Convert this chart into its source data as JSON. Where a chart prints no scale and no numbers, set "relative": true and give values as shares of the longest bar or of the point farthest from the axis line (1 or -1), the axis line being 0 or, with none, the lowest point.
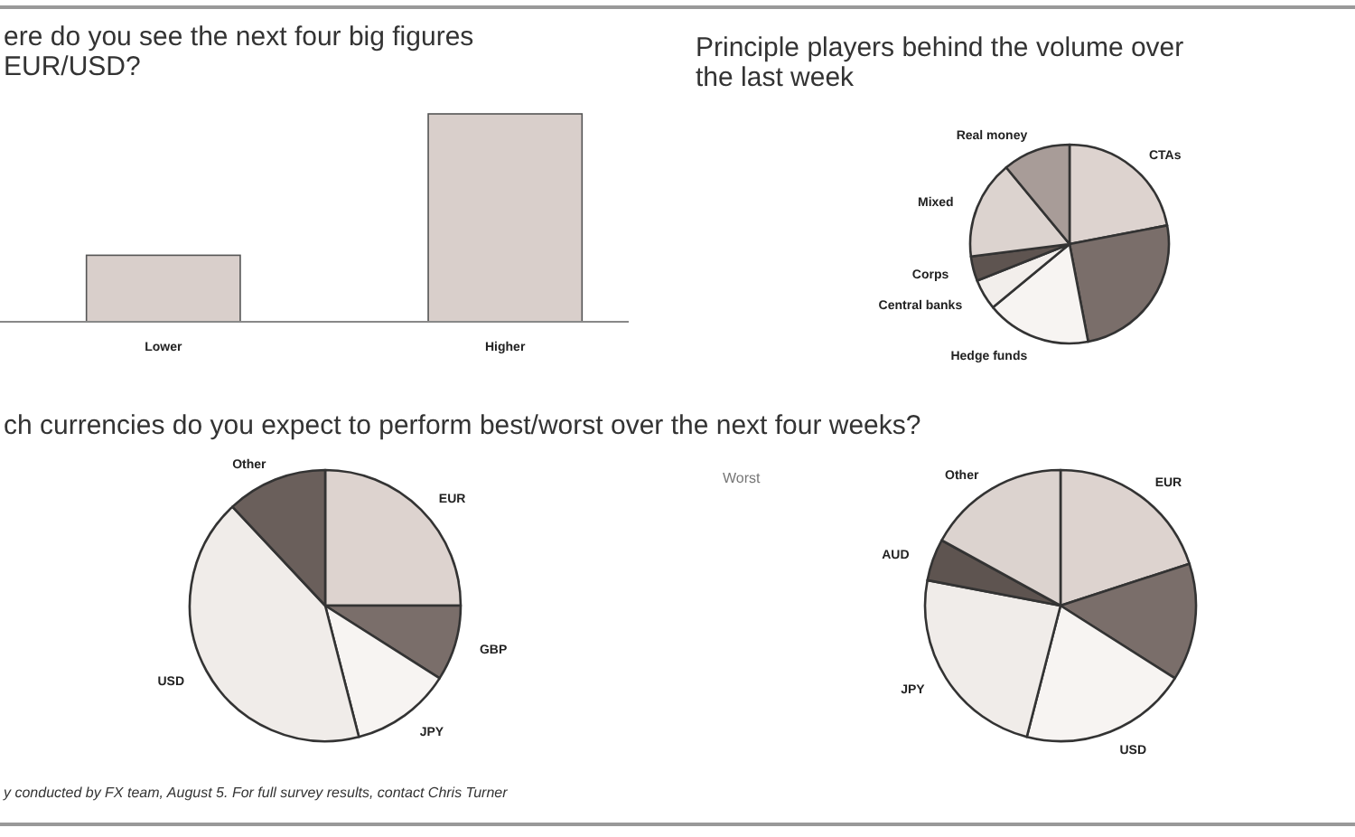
{
  "chart_data": [
    {
      "type": "bar",
      "title": "ere do you see the next four big figures\nEUR/USD?",
      "categories": [
        "Lower",
        "Higher"
      ],
      "values": [
        0.32,
        1
      ],
      "color": "#d9cfcb",
      "relative": true
    },
    {
      "type": "pie",
      "title": "Principle players behind the volume over\nthe last week",
      "categories": [
        "CTAs",
        null,
        "Hedge funds",
        "Central banks",
        "Corps",
        "Mixed",
        "Real money"
      ],
      "values": [
        22,
        25,
        17,
        5,
        4,
        16,
        11
      ],
      "colors": [
        "#ddd3cf",
        "#7a6e6a",
        "#f7f4f2",
        "#f2eeeb",
        "#5e5450",
        "#dcd3cf",
        "#a89c98"
      ]
    },
    {
      "type": "pie",
      "title": "ch currencies do you expect to perform best/worst over the next four weeks?",
      "categories": [
        "EUR",
        "GBP",
        "JPY",
        "USD",
        "Other"
      ],
      "values": [
        25,
        9,
        12,
        42,
        12
      ],
      "colors": [
        "#ddd3cf",
        "#7a6e6a",
        "#f7f4f2",
        "#f0ece9",
        "#6a5f5b"
      ],
      "annotations": [
        "y conducted by FX team, August 5. For full survey results, contact Chris Turner"
      ]
    },
    {
      "type": "pie",
      "subtitle": "Worst",
      "categories": [
        "EUR",
        null,
        "USD",
        "JPY",
        "AUD",
        "Other"
      ],
      "values": [
        20,
        14,
        20,
        24,
        5,
        17
      ],
      "colors": [
        "#ddd3cf",
        "#7a6e6a",
        "#f7f4f2",
        "#f0ece9",
        "#5e5450",
        "#dcd3cf"
      ]
    }
  ]
}
